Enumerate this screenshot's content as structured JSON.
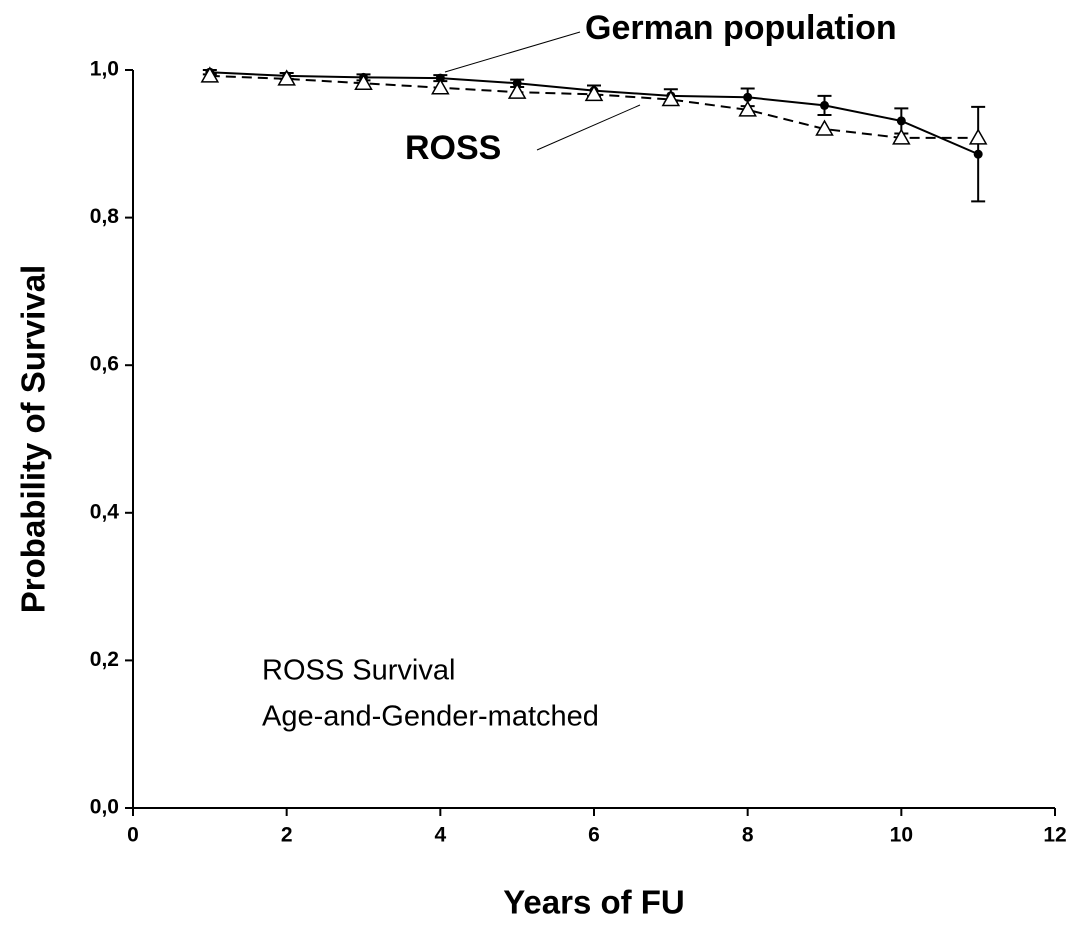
{
  "chart_data": {
    "type": "line",
    "x_label": "Years of FU",
    "y_label": "Probability of Survival",
    "x": [
      1,
      2,
      3,
      4,
      5,
      6,
      7,
      8,
      9,
      10,
      11
    ],
    "series": [
      {
        "name": "German population",
        "color": "#000000",
        "marker": "circle",
        "line_style": "solid",
        "values": [
          0.997,
          0.992,
          0.99,
          0.989,
          0.982,
          0.972,
          0.965,
          0.963,
          0.952,
          0.931,
          0.886
        ],
        "errors": [
          0.003,
          0.004,
          0.004,
          0.004,
          0.005,
          0.007,
          0.009,
          0.012,
          0.013,
          0.017,
          0.064
        ]
      },
      {
        "name": "ROSS",
        "color": "#000000",
        "marker": "triangle",
        "line_style": "dashed",
        "values": [
          0.992,
          0.988,
          0.982,
          0.976,
          0.97,
          0.967,
          0.96,
          0.946,
          0.92,
          0.908,
          0.908
        ]
      }
    ],
    "notes": [
      "ROSS Survival",
      "Age-and-Gender-matched"
    ],
    "xlim": [
      0,
      12
    ],
    "xticks": [
      0,
      2,
      4,
      6,
      8,
      10,
      12
    ],
    "ylim": [
      0,
      1
    ],
    "yticks": [
      {
        "value": 0,
        "label": "0,0"
      },
      {
        "value": 0.2,
        "label": "0,2"
      },
      {
        "value": 0.4,
        "label": "0,4"
      },
      {
        "value": 0.6,
        "label": "0,6"
      },
      {
        "value": 0.8,
        "label": "0,8"
      },
      {
        "value": 1,
        "label": "1,0"
      }
    ],
    "grid": false
  }
}
